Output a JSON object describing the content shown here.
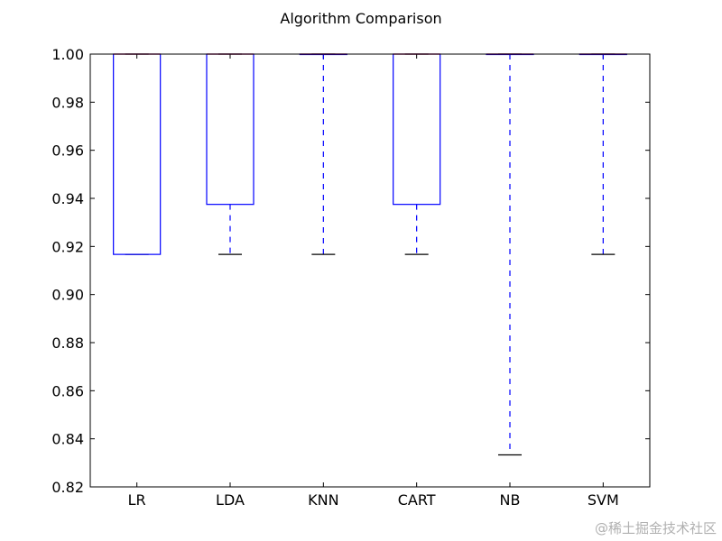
{
  "chart_data": {
    "type": "box",
    "title": "Algorithm Comparison",
    "xlabel": "",
    "ylabel": "",
    "ylim": [
      0.82,
      1.0
    ],
    "yticks": [
      0.82,
      0.84,
      0.86,
      0.88,
      0.9,
      0.92,
      0.94,
      0.96,
      0.98,
      1.0
    ],
    "ytick_labels": [
      "0.82",
      "0.84",
      "0.86",
      "0.88",
      "0.90",
      "0.92",
      "0.94",
      "0.96",
      "0.98",
      "1.00"
    ],
    "grid": false,
    "box_color": "#0000ff",
    "median_color": "#ff0000",
    "whisker_cap_color": "#000000",
    "categories": [
      "LR",
      "LDA",
      "KNN",
      "CART",
      "NB",
      "SVM"
    ],
    "boxes": [
      {
        "name": "LR",
        "whisker_low": 0.9167,
        "q1": 0.9167,
        "median": 1.0,
        "q3": 1.0,
        "whisker_high": 1.0
      },
      {
        "name": "LDA",
        "whisker_low": 0.9167,
        "q1": 0.9375,
        "median": 1.0,
        "q3": 1.0,
        "whisker_high": 1.0
      },
      {
        "name": "KNN",
        "whisker_low": 0.9167,
        "q1": 1.0,
        "median": 1.0,
        "q3": 1.0,
        "whisker_high": 1.0
      },
      {
        "name": "CART",
        "whisker_low": 0.9167,
        "q1": 0.9375,
        "median": 1.0,
        "q3": 1.0,
        "whisker_high": 1.0
      },
      {
        "name": "NB",
        "whisker_low": 0.8333,
        "q1": 1.0,
        "median": 1.0,
        "q3": 1.0,
        "whisker_high": 1.0
      },
      {
        "name": "SVM",
        "whisker_low": 0.9167,
        "q1": 1.0,
        "median": 1.0,
        "q3": 1.0,
        "whisker_high": 1.0
      }
    ]
  },
  "watermark": "@稀土掘金技术社区"
}
